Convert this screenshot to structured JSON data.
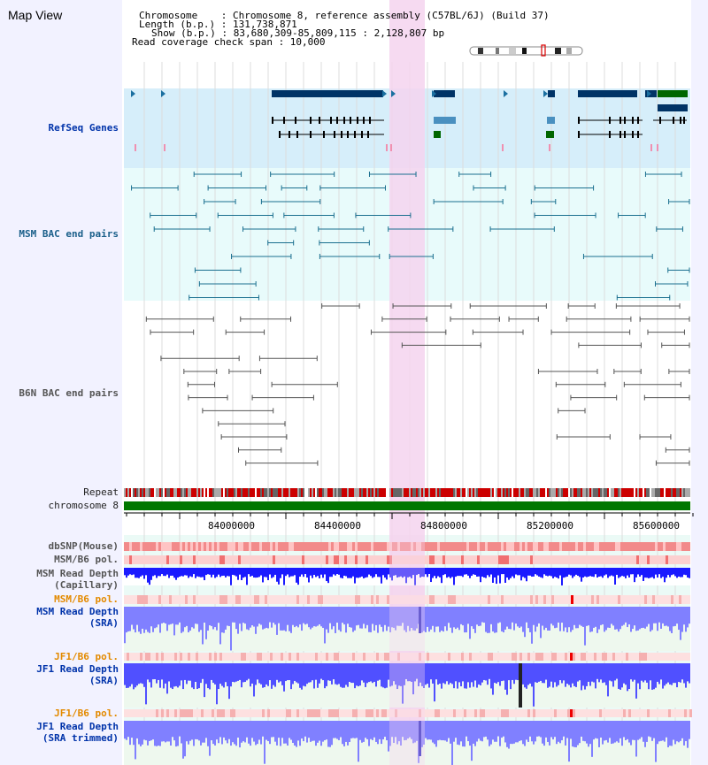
{
  "title": "Map View",
  "info": {
    "chromosome": "Chromosome    : Chromosome 8, reference assembly (C57BL/6J) (Build 37)",
    "length": "Length (b.p.) : 131,738,871",
    "show": "Show (b.p.) : 83,680,309-85,809,115 : 2,128,807 bp",
    "coverage": "Read coverage check span : 10,000"
  },
  "tracks": {
    "refseq": "RefSeq Genes",
    "msm_bac": "MSM BAC end pairs",
    "b6n_bac": "B6N BAC end pairs",
    "repeat": "Repeat",
    "chromosome": "chromosome 8",
    "dbsnp": "dbSNP(Mouse)",
    "msm_b6_pol": "MSM/B6 pol.",
    "msm_read_depth_cap_1": "MSM Read Depth",
    "msm_read_depth_cap_2": "(Capillary)",
    "msm_b6_pol_2": "MSM/B6 pol.",
    "msm_read_depth_sra_1": "MSM Read Depth",
    "msm_read_depth_sra_2": "(SRA)",
    "jf1_b6_pol": "JF1/B6 pol.",
    "jf1_read_depth_sra_1": "JF1 Read Depth",
    "jf1_read_depth_sra_2": "(SRA)",
    "jf1_b6_pol_2": "JF1/B6 pol.",
    "jf1_read_depth_trim_1": "JF1 Read Depth",
    "jf1_read_depth_trim_2": "(SRA trimmed)"
  },
  "axis": {
    "ticks": [
      "84000000",
      "84400000",
      "84800000",
      "85200000",
      "85600000"
    ]
  },
  "colors": {
    "refseq_bg": "#d6eefa",
    "bac_bg": "#e8fbfb",
    "highlight": "#f5d3ef",
    "gene_dark": "#003366",
    "gene_green": "#006600",
    "repeat_red": "#cc0000",
    "chrom_green": "#007700",
    "depth_blue": "#1a1aff",
    "depth_light": "#8080ff"
  }
}
